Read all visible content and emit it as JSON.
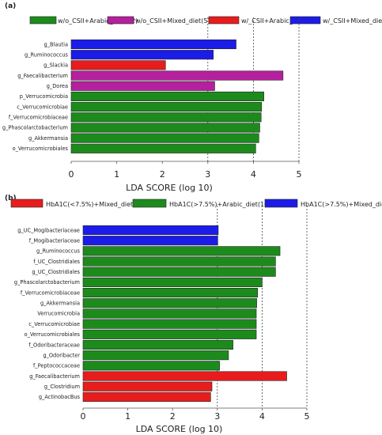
{
  "colors": {
    "green": "#1c8b1c",
    "magenta": "#b5209e",
    "red": "#e81c1c",
    "blue": "#1c1ce8",
    "bar_stroke": "#222222",
    "dotted": "#444444"
  },
  "chart_data": [
    {
      "panel": "(a)",
      "type": "bar",
      "orientation": "horizontal",
      "xlabel": "LDA SCORE (log 10)",
      "xlim": [
        0,
        5
      ],
      "xticks": [
        0,
        1,
        2,
        3,
        4,
        5
      ],
      "dotted_gridlines_at": [
        3,
        4,
        5
      ],
      "legend": [
        {
          "name": "w/o_CSII+Arabic_diet(12)",
          "color_key": "green"
        },
        {
          "name": "w/o_CSII+Mixed_diet(5)",
          "color_key": "magenta"
        },
        {
          "name": "w/_CSII+Arabic_diet(4)",
          "color_key": "red"
        },
        {
          "name": "w/_CSII+Mixed_diet(7)",
          "color_key": "blue"
        }
      ],
      "bars": [
        {
          "label": "g_Blautia",
          "value": 3.62,
          "color_key": "blue"
        },
        {
          "label": "g_Ruminococcus",
          "value": 3.12,
          "color_key": "blue"
        },
        {
          "label": "g_Slackia",
          "value": 2.07,
          "color_key": "red"
        },
        {
          "label": "g_Faecalibacterium",
          "value": 4.65,
          "color_key": "magenta"
        },
        {
          "label": "g_Dorea",
          "value": 3.15,
          "color_key": "magenta"
        },
        {
          "label": "p_Verrucomicrobia",
          "value": 4.23,
          "color_key": "green"
        },
        {
          "label": "c_Verrucomicrobiae",
          "value": 4.18,
          "color_key": "green"
        },
        {
          "label": "f_Verrucomicrobiaceae",
          "value": 4.17,
          "color_key": "green"
        },
        {
          "label": "g_Phascolarctobacterium",
          "value": 4.14,
          "color_key": "green"
        },
        {
          "label": "g_Akkermansia",
          "value": 4.12,
          "color_key": "green"
        },
        {
          "label": "o_Verrucomicrobiales",
          "value": 4.05,
          "color_key": "green"
        }
      ]
    },
    {
      "panel": "(b)",
      "type": "bar",
      "orientation": "horizontal",
      "xlabel": "LDA SCORE (log 10)",
      "xlim": [
        0,
        5
      ],
      "xticks": [
        0,
        1,
        2,
        3,
        4,
        5
      ],
      "dotted_gridlines_at": [
        3,
        4,
        5
      ],
      "legend": [
        {
          "name": "HbA1C(<7.5%)+Mixed_diet(4)",
          "color_key": "red"
        },
        {
          "name": "HbA1C(>7.5%)+Arabic_diet(10)",
          "color_key": "green"
        },
        {
          "name": "HbA1C(>7.5%)+Mixed_diet(8)",
          "color_key": "blue"
        }
      ],
      "bars": [
        {
          "label": "g_UC_Mogibacteriaceae",
          "value": 3.02,
          "color_key": "blue"
        },
        {
          "label": "f_Mogibacteriaceae",
          "value": 3.01,
          "color_key": "blue"
        },
        {
          "label": "g_Ruminococcus",
          "value": 4.4,
          "color_key": "green"
        },
        {
          "label": "f_UC_Clostridiales",
          "value": 4.3,
          "color_key": "green"
        },
        {
          "label": "g_UC_Clostridiales",
          "value": 4.3,
          "color_key": "green"
        },
        {
          "label": "g_Phascolarctobacterium",
          "value": 4.0,
          "color_key": "green"
        },
        {
          "label": "f_Verrucomicrobiaceae",
          "value": 3.9,
          "color_key": "green"
        },
        {
          "label": "g_Akkermansia",
          "value": 3.88,
          "color_key": "green"
        },
        {
          "label": "Verrucomicrobia",
          "value": 3.87,
          "color_key": "green"
        },
        {
          "label": "c_Verrucomicrobiae",
          "value": 3.87,
          "color_key": "green"
        },
        {
          "label": "o_Verrucomicrobiales",
          "value": 3.87,
          "color_key": "green"
        },
        {
          "label": "f_Odoribacteraceae",
          "value": 3.35,
          "color_key": "green"
        },
        {
          "label": "g_Odoribacter",
          "value": 3.25,
          "color_key": "green"
        },
        {
          "label": "f_Peptococcaceae",
          "value": 3.05,
          "color_key": "green"
        },
        {
          "label": "g_Faecalibacterium",
          "value": 4.55,
          "color_key": "red"
        },
        {
          "label": "g_Clostridium",
          "value": 2.88,
          "color_key": "red"
        },
        {
          "label": "g_ActinobacBus",
          "value": 2.85,
          "color_key": "red"
        }
      ]
    }
  ]
}
